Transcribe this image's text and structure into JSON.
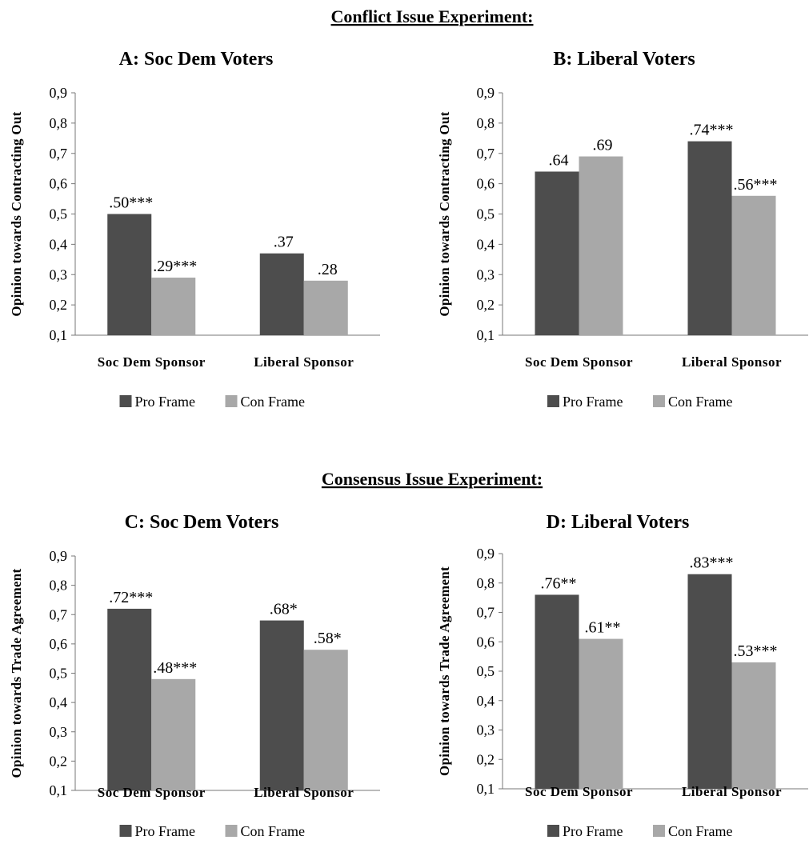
{
  "colors": {
    "pro": "#4d4d4d",
    "con": "#a8a8a8"
  },
  "sections": [
    {
      "title": "Conflict Issue Experiment:"
    },
    {
      "title": "Consensus Issue Experiment:"
    }
  ],
  "chart_data": [
    {
      "type": "bar",
      "title": "A: Soc Dem Voters",
      "ylabel": "Opinion towards Contracting Out",
      "ylim": [
        0.1,
        0.9
      ],
      "yticks": [
        "0,1",
        "0,2",
        "0,3",
        "0,4",
        "0,5",
        "0,6",
        "0,7",
        "0,8",
        "0,9"
      ],
      "categories": [
        "Soc Dem Sponsor",
        "Liberal Sponsor"
      ],
      "series": [
        {
          "name": "Pro Frame",
          "values": [
            0.5,
            0.37
          ],
          "labels": [
            ".50***",
            ".37"
          ]
        },
        {
          "name": "Con Frame",
          "values": [
            0.29,
            0.28
          ],
          "labels": [
            ".29***",
            ".28"
          ]
        }
      ],
      "legend": "bottom"
    },
    {
      "type": "bar",
      "title": "B: Liberal Voters",
      "ylabel": "Opinion towards Contracting Out",
      "ylim": [
        0.1,
        0.9
      ],
      "yticks": [
        "0,1",
        "0,2",
        "0,3",
        "0,4",
        "0,5",
        "0,6",
        "0,7",
        "0,8",
        "0,9"
      ],
      "categories": [
        "Soc Dem Sponsor",
        "Liberal Sponsor"
      ],
      "series": [
        {
          "name": "Pro Frame",
          "values": [
            0.64,
            0.74
          ],
          "labels": [
            ".64",
            ".74***"
          ]
        },
        {
          "name": "Con Frame",
          "values": [
            0.69,
            0.56
          ],
          "labels": [
            ".69",
            ".56***"
          ]
        }
      ],
      "legend": "bottom"
    },
    {
      "type": "bar",
      "title": "C: Soc Dem Voters",
      "ylabel": "Opinion towards Trade Agreement",
      "ylim": [
        0.1,
        0.9
      ],
      "yticks": [
        "0,1",
        "0,2",
        "0,3",
        "0,4",
        "0,5",
        "0,6",
        "0,7",
        "0,8",
        "0,9"
      ],
      "categories": [
        "Soc Dem Sponsor",
        "Liberal Sponsor"
      ],
      "series": [
        {
          "name": "Pro Frame",
          "values": [
            0.72,
            0.68
          ],
          "labels": [
            ".72***",
            ".68*"
          ]
        },
        {
          "name": "Con Frame",
          "values": [
            0.48,
            0.58
          ],
          "labels": [
            ".48***",
            ".58*"
          ]
        }
      ],
      "legend": "bottom"
    },
    {
      "type": "bar",
      "title": "D: Liberal Voters",
      "ylabel": "Opinion towards Trade Agreement",
      "ylim": [
        0.1,
        0.9
      ],
      "yticks": [
        "0,1",
        "0,2",
        "0,3",
        "0,4",
        "0,5",
        "0,6",
        "0,7",
        "0,8",
        "0,9"
      ],
      "categories": [
        "Soc Dem Sponsor",
        "Liberal Sponsor"
      ],
      "series": [
        {
          "name": "Pro Frame",
          "values": [
            0.76,
            0.83
          ],
          "labels": [
            ".76**",
            ".83***"
          ]
        },
        {
          "name": "Con Frame",
          "values": [
            0.61,
            0.53
          ],
          "labels": [
            ".61**",
            ".53***"
          ]
        }
      ],
      "legend": "bottom"
    }
  ]
}
